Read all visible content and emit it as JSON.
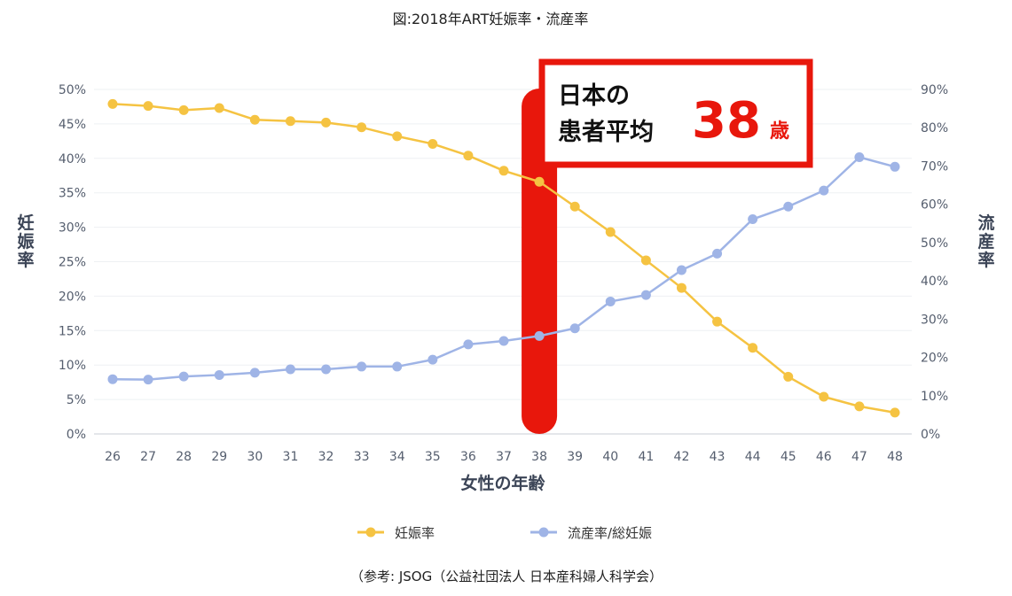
{
  "chart_data": {
    "type": "line",
    "title": "図:2018年ART妊娠率・流産率",
    "xlabel": "女性の年齢",
    "ylabel_left": "妊娠率",
    "ylabel_right": "流産率",
    "categories": [
      "26",
      "27",
      "28",
      "29",
      "30",
      "31",
      "32",
      "33",
      "34",
      "35",
      "36",
      "37",
      "38",
      "39",
      "40",
      "41",
      "42",
      "43",
      "44",
      "45",
      "46",
      "47",
      "48"
    ],
    "y_left_ticks": [
      "0%",
      "5%",
      "10%",
      "15%",
      "20%",
      "25%",
      "30%",
      "35%",
      "40%",
      "45%",
      "50%"
    ],
    "y_right_ticks": [
      "0%",
      "10%",
      "20%",
      "30%",
      "40%",
      "50%",
      "60%",
      "70%",
      "80%",
      "90%"
    ],
    "ylim_left": [
      0,
      50
    ],
    "ylim_right": [
      0,
      90
    ],
    "series": [
      {
        "name": "妊娠率",
        "axis": "left",
        "color": "#f5c342",
        "values": [
          47.9,
          47.6,
          47.0,
          47.3,
          45.6,
          45.4,
          45.2,
          44.5,
          43.2,
          42.1,
          40.4,
          38.2,
          36.6,
          33.0,
          29.3,
          25.2,
          21.2,
          16.3,
          12.5,
          8.3,
          5.4,
          4.0,
          3.1
        ]
      },
      {
        "name": "流産率/総妊娠",
        "axis": "right",
        "color": "#9fb4e6",
        "values": [
          14.3,
          14.2,
          15.0,
          15.4,
          16.0,
          16.9,
          16.9,
          17.6,
          17.6,
          19.4,
          23.4,
          24.3,
          25.6,
          27.6,
          34.6,
          36.3,
          42.8,
          47.1,
          56.1,
          59.4,
          63.6,
          72.3,
          69.8
        ]
      }
    ],
    "highlight": {
      "category": "38",
      "color": "#e8170c",
      "callout_line1": "日本の",
      "callout_line2": "患者平均",
      "callout_value": "38",
      "callout_unit": "歳"
    },
    "legend_position": "bottom",
    "source_note": "（参考: JSOG（公益社団法人 日本産科婦人科学会）"
  }
}
